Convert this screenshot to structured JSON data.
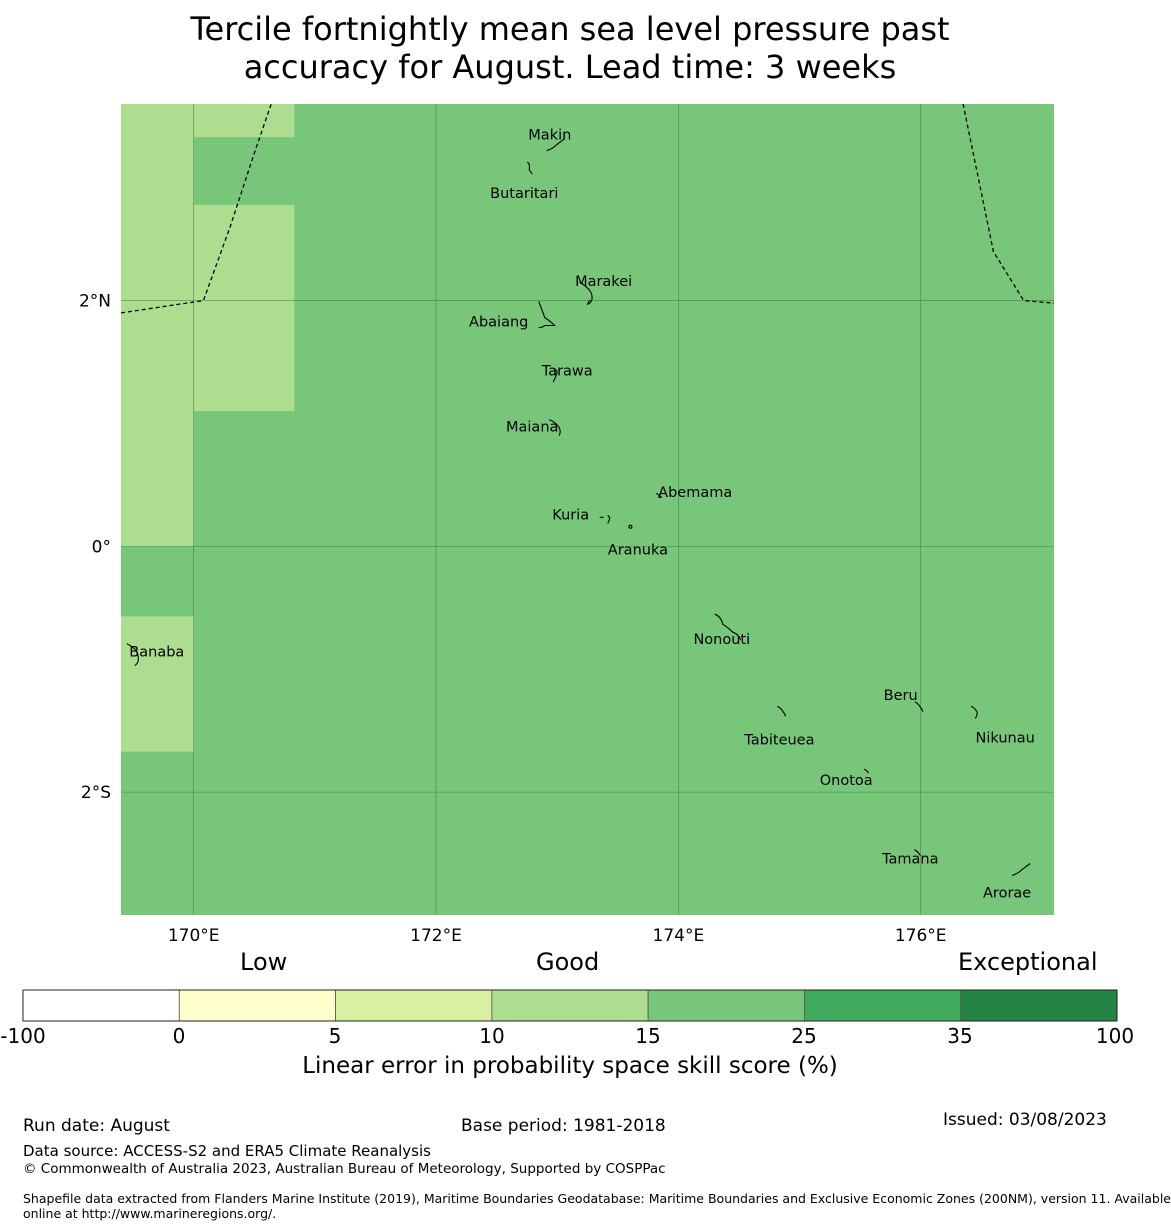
{
  "title": {
    "line1": "Tercile fortnightly mean sea level pressure past",
    "line2": "accuracy for August. Lead time: 3 weeks"
  },
  "map": {
    "lon_range": [
      169.4,
      177.1
    ],
    "lat_range": [
      -3.0,
      3.6
    ],
    "lon_ticks": [
      {
        "value": 170,
        "label": "170°E"
      },
      {
        "value": 172,
        "label": "172°E"
      },
      {
        "value": 174,
        "label": "174°E"
      },
      {
        "value": 176,
        "label": "176°E"
      }
    ],
    "lat_ticks": [
      {
        "value": 2,
        "label": "2°N"
      },
      {
        "value": 0,
        "label": "0°"
      },
      {
        "value": -2,
        "label": "2°S"
      }
    ],
    "background_color": "#78c679",
    "light_color": "#addd8e",
    "light_cells": [
      {
        "lon": [
          169.4,
          170.0
        ],
        "lat": [
          0.0,
          3.6
        ]
      },
      {
        "lon": [
          169.4,
          170.0
        ],
        "lat": [
          -1.67,
          -0.57
        ]
      },
      {
        "lon": [
          170.0,
          170.83
        ],
        "lat": [
          3.33,
          3.6
        ]
      },
      {
        "lon": [
          170.0,
          170.83
        ],
        "lat": [
          1.1,
          2.78
        ]
      }
    ],
    "eez_boundaries": [
      [
        [
          169.4,
          1.9
        ],
        [
          170.08,
          2.0
        ],
        [
          170.3,
          2.6
        ],
        [
          170.5,
          3.2
        ],
        [
          170.64,
          3.6
        ]
      ],
      [
        [
          176.35,
          3.6
        ],
        [
          176.6,
          2.4
        ],
        [
          176.85,
          2.0
        ],
        [
          177.1,
          1.98
        ]
      ]
    ],
    "islands": [
      {
        "name": "Makin",
        "lon": 172.98,
        "lat": 3.27
      },
      {
        "name": "Butaritari",
        "lon": 172.77,
        "lat": 3.08
      },
      {
        "name": "Marakei",
        "lon": 173.3,
        "lat": 2.02
      },
      {
        "name": "Abaiang",
        "lon": 172.93,
        "lat": 1.83
      },
      {
        "name": "Tarawa",
        "lon": 173.0,
        "lat": 1.4
      },
      {
        "name": "Maiana",
        "lon": 173.0,
        "lat": 0.95
      },
      {
        "name": "Abemama",
        "lon": 173.85,
        "lat": 0.4
      },
      {
        "name": "Kuria",
        "lon": 173.4,
        "lat": 0.22
      },
      {
        "name": "Aranuka",
        "lon": 173.6,
        "lat": 0.16
      },
      {
        "name": "Banaba",
        "lon": 169.53,
        "lat": -0.89
      },
      {
        "name": "Nonouti",
        "lon": 174.4,
        "lat": -0.65
      },
      {
        "name": "Tabiteuea",
        "lon": 174.85,
        "lat": -1.35
      },
      {
        "name": "Beru",
        "lon": 176.0,
        "lat": -1.33
      },
      {
        "name": "Nikunau",
        "lon": 176.45,
        "lat": -1.35
      },
      {
        "name": "Onotoa",
        "lon": 175.55,
        "lat": -1.83
      },
      {
        "name": "Tamana",
        "lon": 175.98,
        "lat": -2.5
      },
      {
        "name": "Arorae",
        "lon": 176.82,
        "lat": -2.63
      }
    ]
  },
  "legend": {
    "categories": [
      "Low",
      "Good",
      "Exceptional"
    ],
    "boundaries": [
      "-100",
      "0",
      "5",
      "10",
      "15",
      "25",
      "35",
      "100"
    ],
    "colors": [
      "#ffffff",
      "#ffffcc",
      "#d9f0a3",
      "#addd8e",
      "#78c679",
      "#41ab5d",
      "#238443"
    ],
    "label": "Linear error in probability space skill score (%)"
  },
  "footer": {
    "run_date": "Run date: August",
    "base_period": "Base period: 1981-2018",
    "issued": "Issued: 03/08/2023",
    "data_source": "Data source: ACCESS-S2 and ERA5 Climate Reanalysis",
    "copyright": "© Commonwealth of Australia 2023, Australian Bureau of Meteorology, Supported by COSPPac",
    "shapefile_line1": "Shapefile data extracted from Flanders Marine Institute (2019), Maritime Boundaries Geodatabase: Maritime Boundaries and Exclusive Economic Zones (200NM), version 11. Available",
    "shapefile_line2": "online at http://www.marineregions.org/."
  }
}
